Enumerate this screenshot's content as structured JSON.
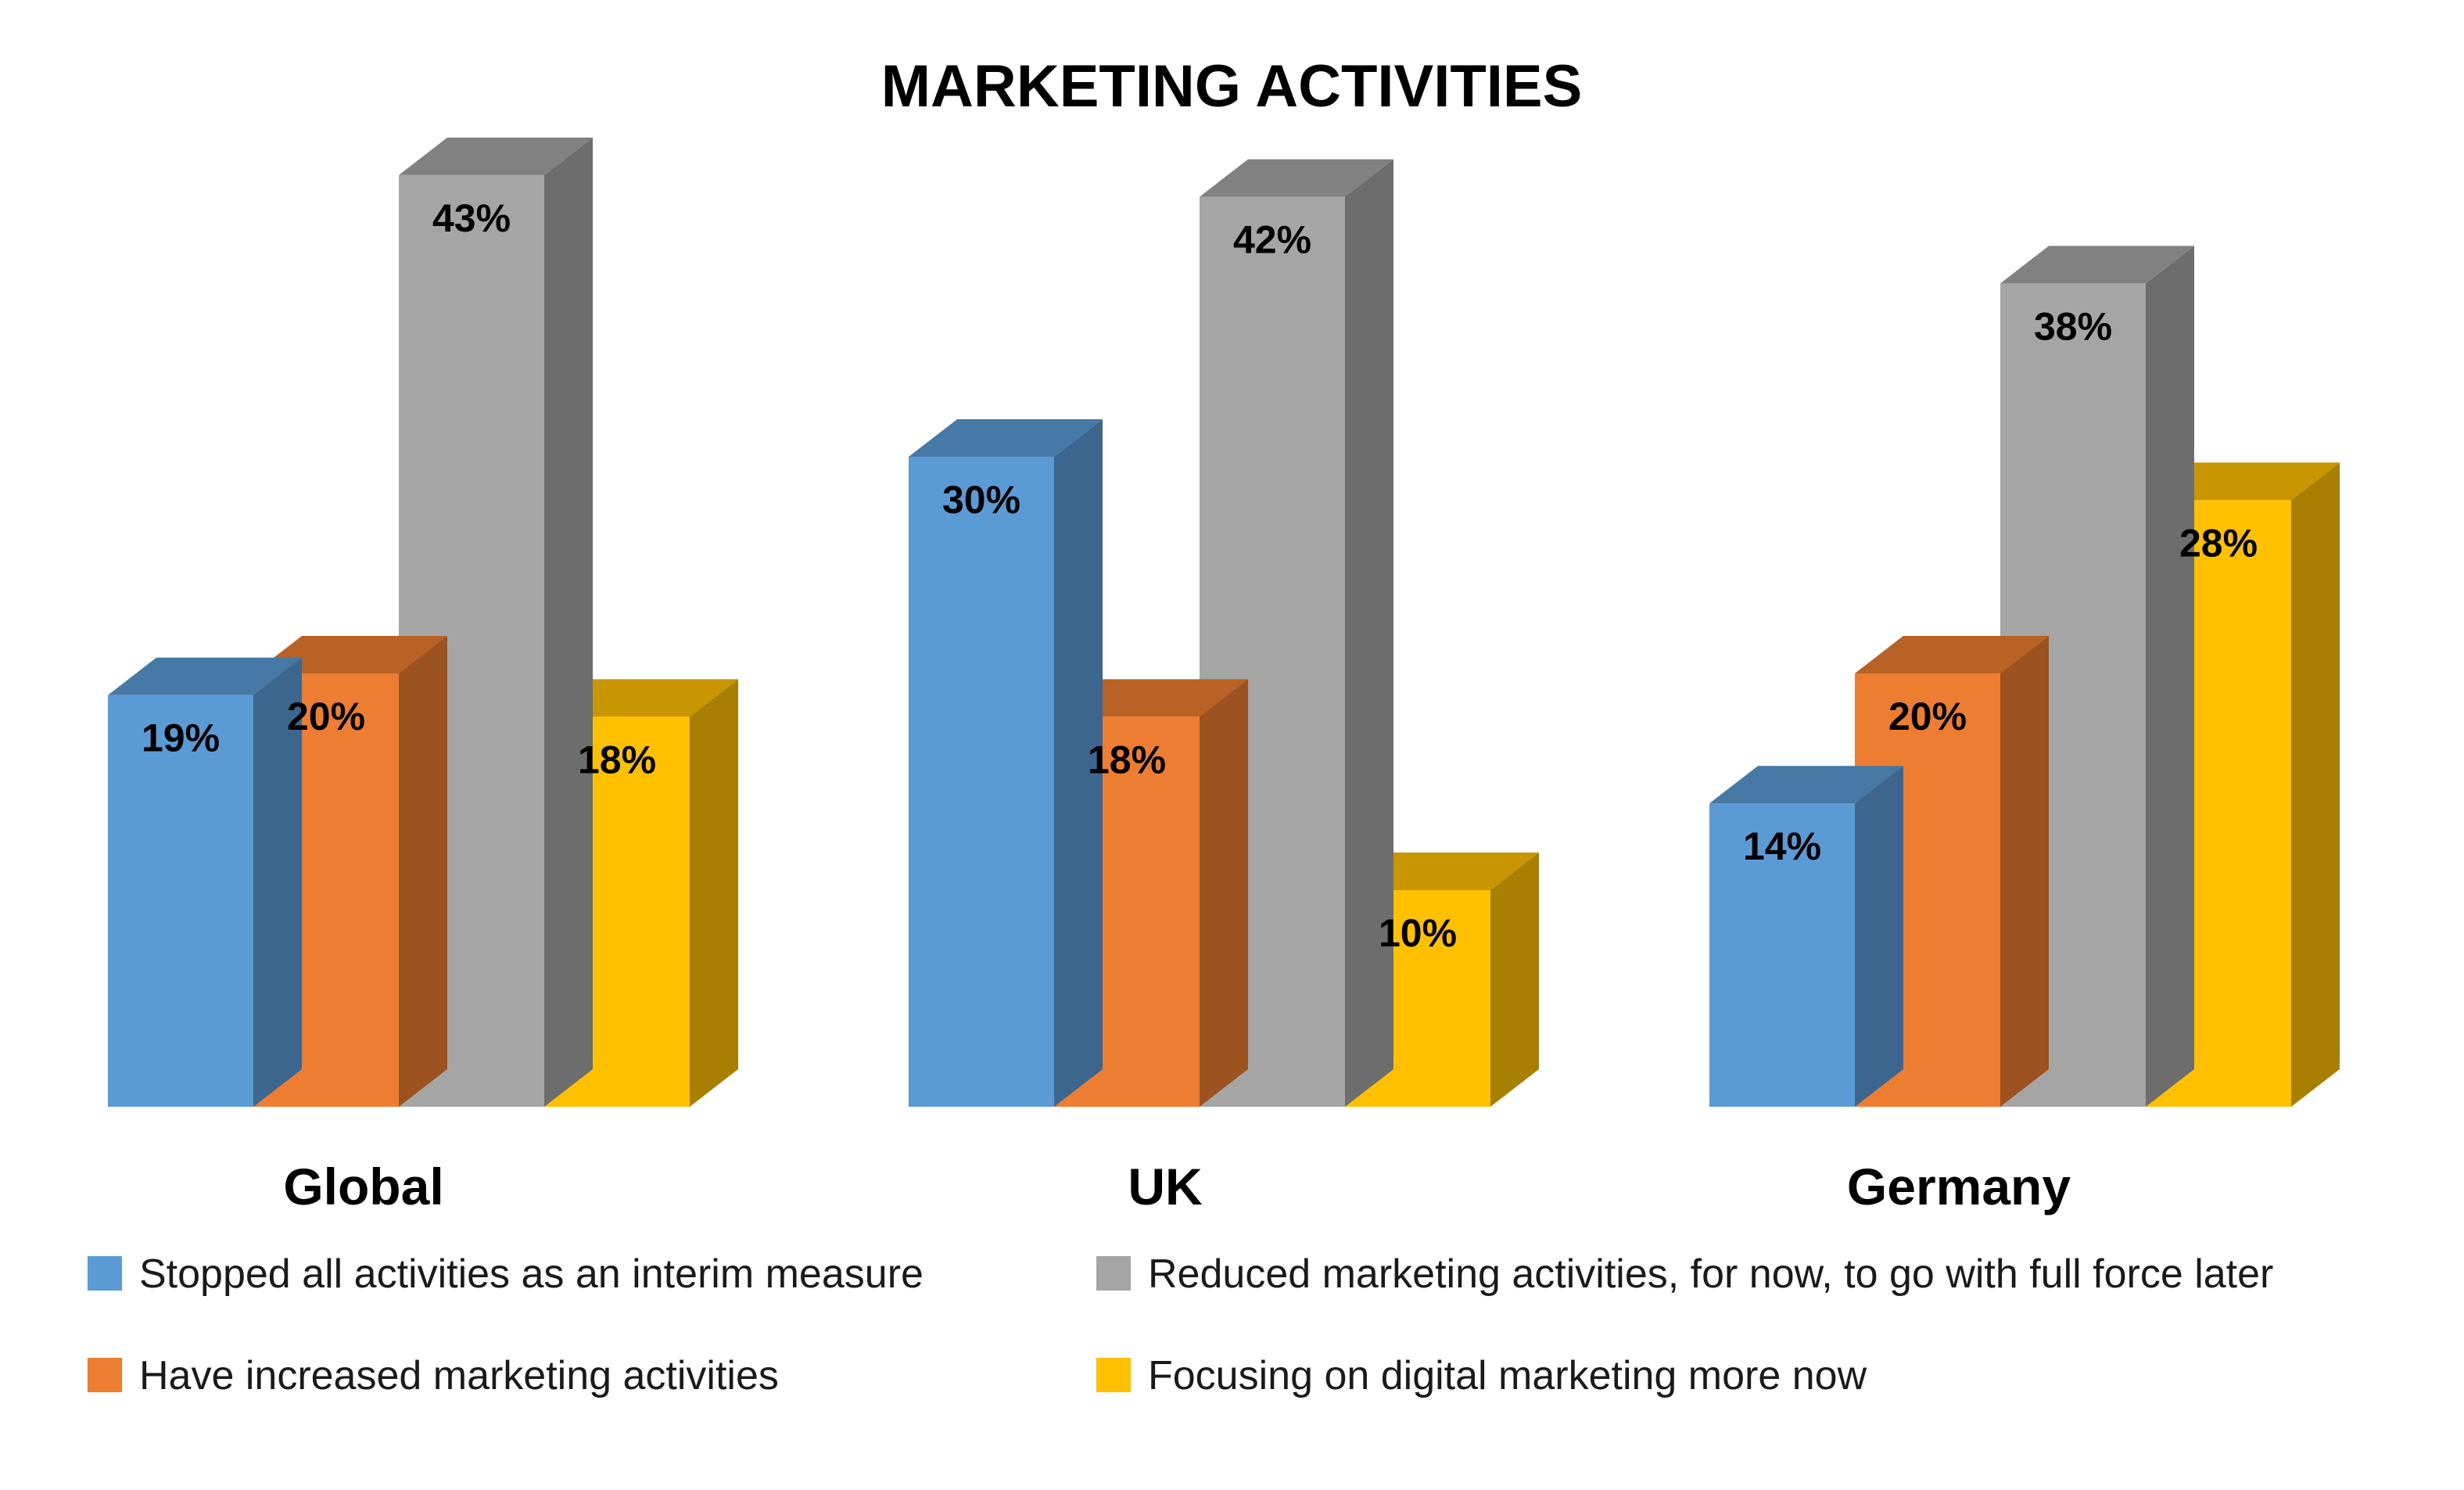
{
  "chart_data": {
    "type": "bar",
    "title": "MARKETING ACTIVITIES",
    "categories": [
      "Global",
      "UK",
      "Germany"
    ],
    "series": [
      {
        "name": "Stopped all activities as an interim measure",
        "values": [
          19,
          30,
          14
        ],
        "color": "#5B9BD5"
      },
      {
        "name": "Have increased marketing activities",
        "values": [
          20,
          18,
          20
        ],
        "color": "#ED7D31"
      },
      {
        "name": "Reduced marketing activities, for now, to go with full force later",
        "values": [
          43,
          42,
          38
        ],
        "color": "#A5A5A5"
      },
      {
        "name": "Focusing on digital marketing more now",
        "values": [
          18,
          10,
          28
        ],
        "color": "#FFC000"
      }
    ],
    "data_labels": [
      [
        "19%",
        "30%",
        "14%"
      ],
      [
        "20%",
        "18%",
        "20%"
      ],
      [
        "43%",
        "42%",
        "38%"
      ],
      [
        "18%",
        "10%",
        "28%"
      ]
    ],
    "ylim": [
      0,
      45
    ],
    "grid": false,
    "style": "3d-clustered-column",
    "legend_position": "bottom"
  }
}
